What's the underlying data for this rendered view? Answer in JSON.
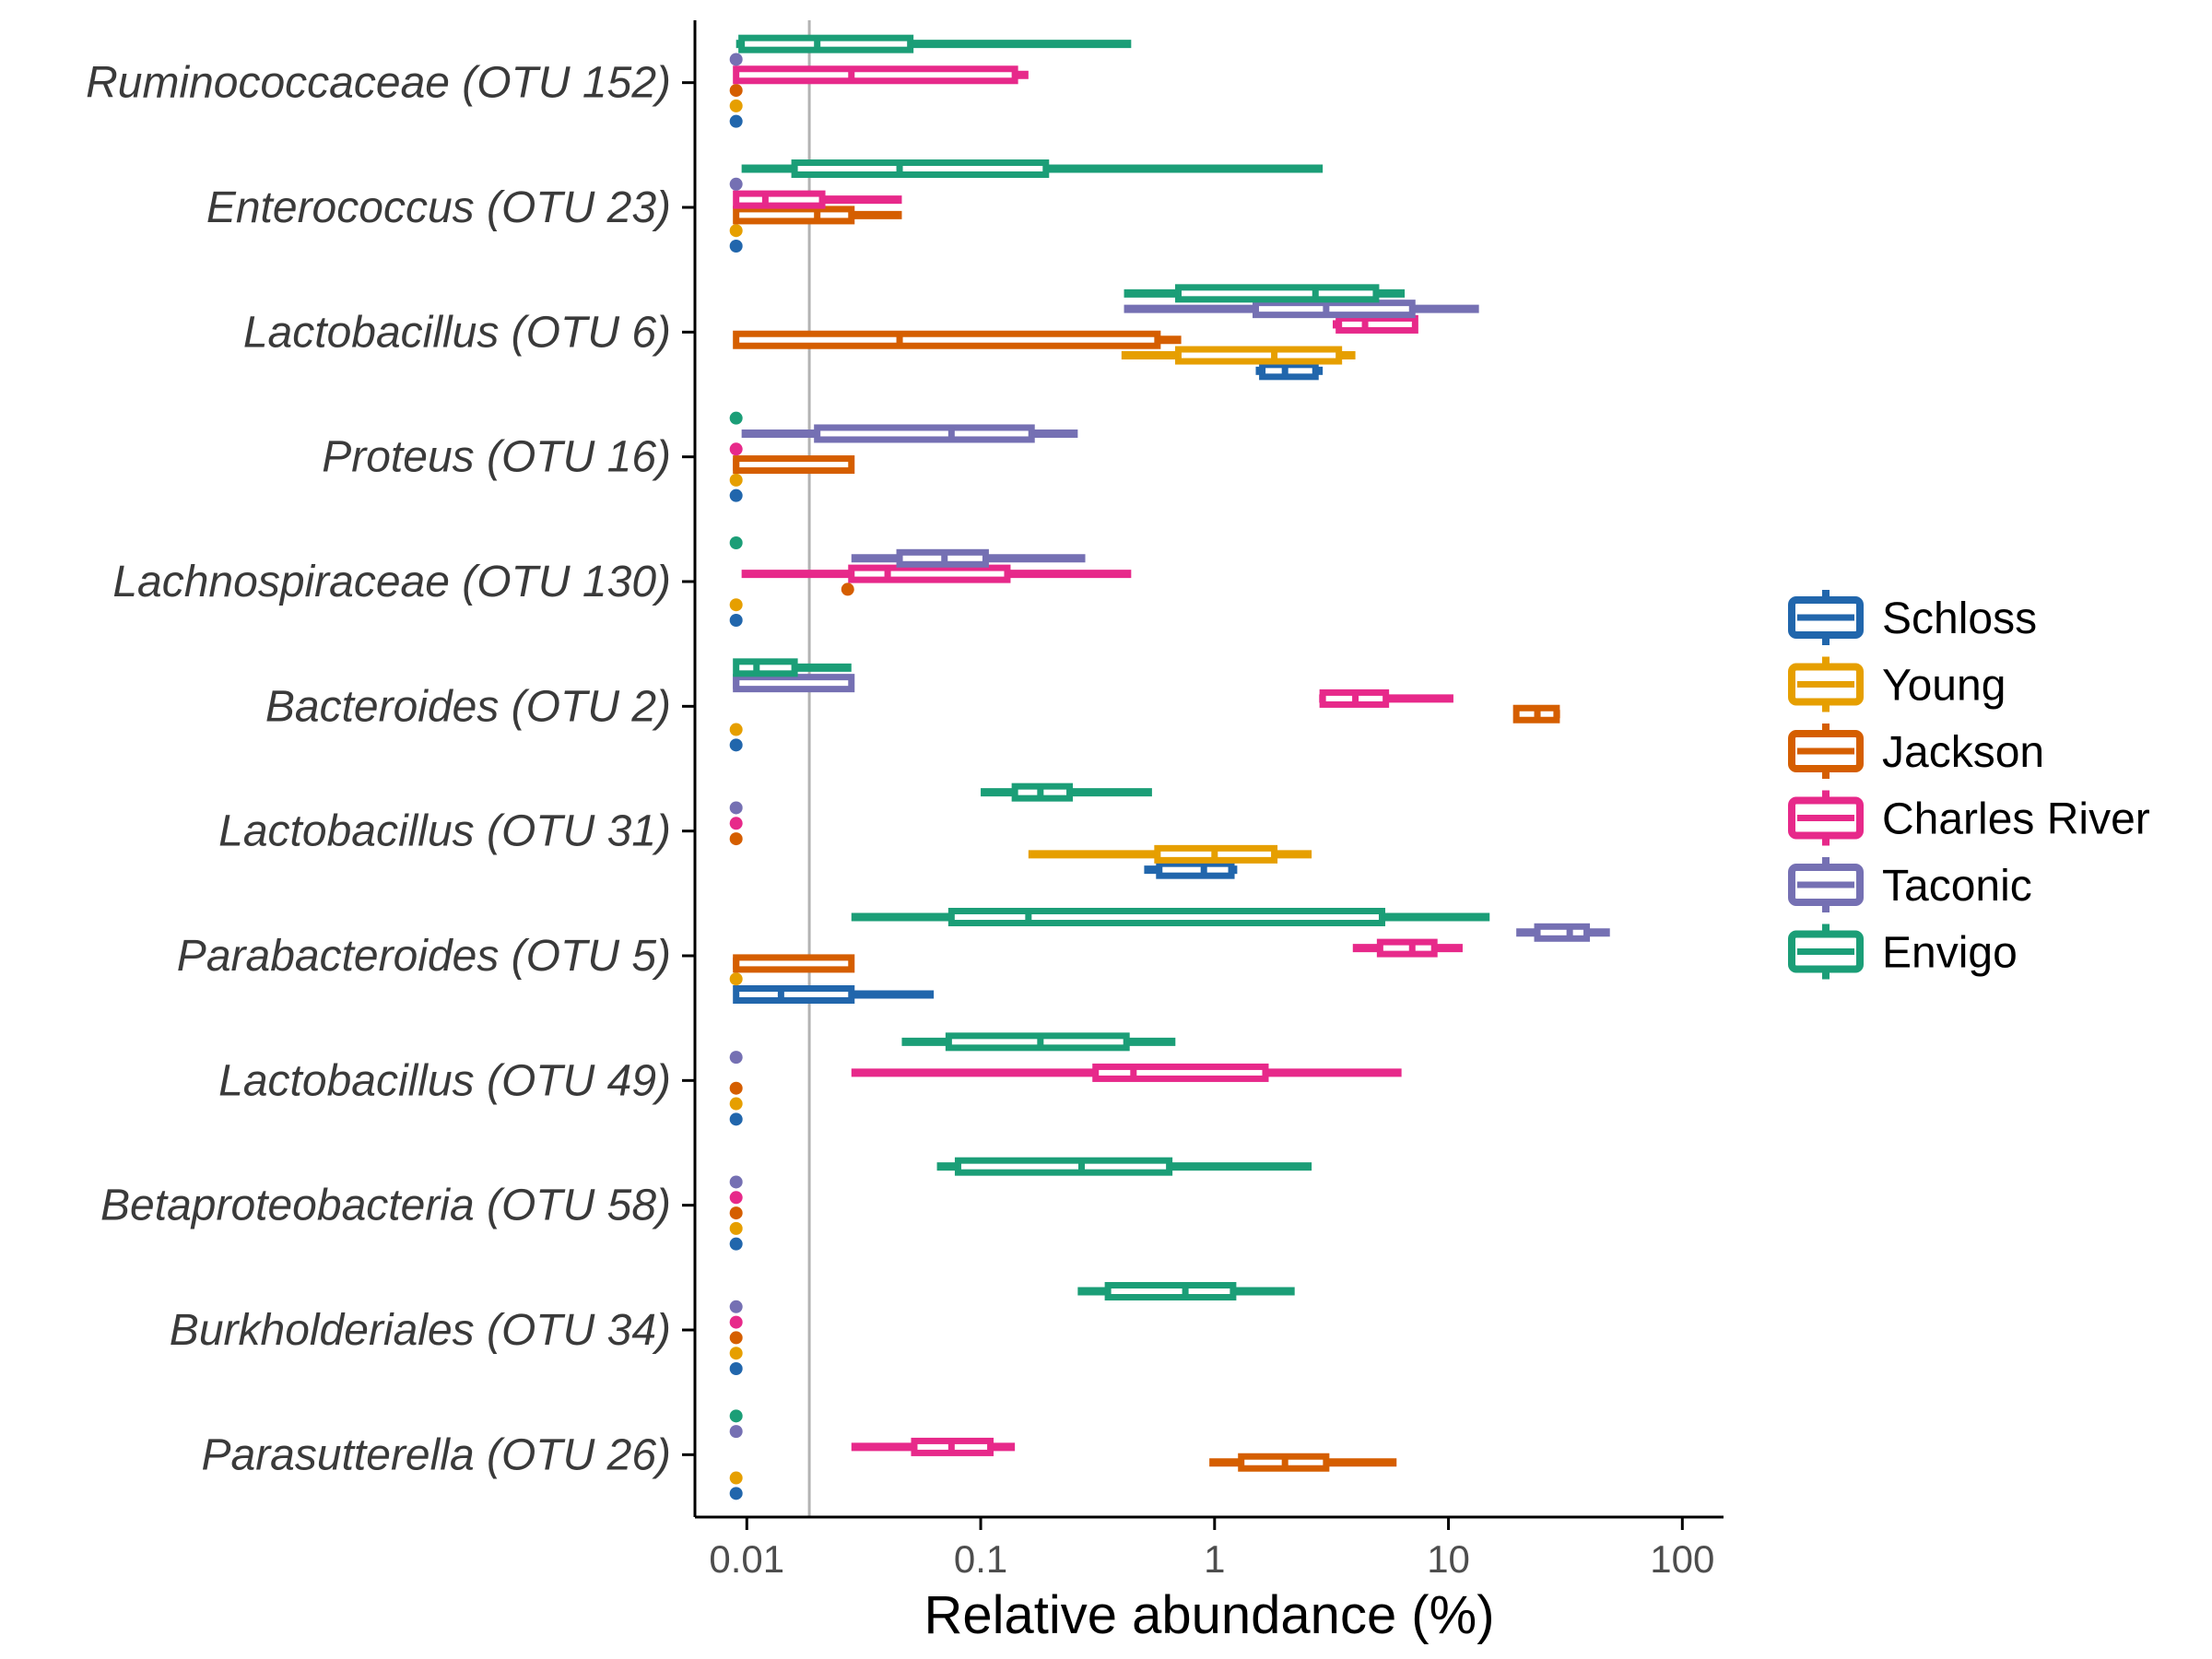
{
  "chart_data": {
    "type": "box",
    "orientation": "horizontal",
    "xlabel": "Relative abundance (%)",
    "x_scale": "log10",
    "xlim": [
      0.006,
      150
    ],
    "x_ticks": [
      {
        "value": 0.01,
        "label": "0.01"
      },
      {
        "value": 0.1,
        "label": "0.1"
      },
      {
        "value": 1,
        "label": "1"
      },
      {
        "value": 10,
        "label": "10"
      },
      {
        "value": 100,
        "label": "100"
      }
    ],
    "reference_line": 0.0185,
    "grid": false,
    "legend_position": "right",
    "series": [
      {
        "name": "Schloss",
        "color": "#2166AC"
      },
      {
        "name": "Young",
        "color": "#E69F00"
      },
      {
        "name": "Jackson",
        "color": "#D55E00"
      },
      {
        "name": "Charles River",
        "color": "#E7298A"
      },
      {
        "name": "Taconic",
        "color": "#7570B3"
      },
      {
        "name": "Envigo",
        "color": "#1B9E77"
      }
    ],
    "categories": [
      "Ruminococcaceae (OTU 152)",
      "Enterococcus (OTU 23)",
      "Lactobacillus (OTU 6)",
      "Proteus (OTU 16)",
      "Lachnospiraceae (OTU 130)",
      "Bacteroides (OTU 2)",
      "Lactobacillus (OTU 31)",
      "Parabacteroides (OTU 5)",
      "Lactobacillus (OTU 49)",
      "Betaproteobacteria (OTU 58)",
      "Burkholderiales (OTU 34)",
      "Parasutterella (OTU 26)"
    ],
    "boxes": [
      [
        {
          "series": "Schloss",
          "min": 0.009,
          "q1": 0.009,
          "median": 0.009,
          "q3": 0.009,
          "max": 0.009
        },
        {
          "series": "Young",
          "min": 0.009,
          "q1": 0.009,
          "median": 0.009,
          "q3": 0.009,
          "max": 0.009
        },
        {
          "series": "Jackson",
          "min": 0.009,
          "q1": 0.009,
          "median": 0.009,
          "q3": 0.009,
          "max": 0.009
        },
        {
          "series": "Charles River",
          "min": 0.009,
          "q1": 0.009,
          "median": 0.028,
          "q3": 0.14,
          "max": 0.16
        },
        {
          "series": "Taconic",
          "min": 0.009,
          "q1": 0.009,
          "median": 0.009,
          "q3": 0.009,
          "max": 0.009
        },
        {
          "series": "Envigo",
          "min": 0.009,
          "q1": 0.0095,
          "median": 0.02,
          "q3": 0.05,
          "max": 0.44
        }
      ],
      [
        {
          "series": "Schloss",
          "min": 0.009,
          "q1": 0.009,
          "median": 0.009,
          "q3": 0.009,
          "max": 0.009
        },
        {
          "series": "Young",
          "min": 0.009,
          "q1": 0.009,
          "median": 0.009,
          "q3": 0.009,
          "max": 0.009
        },
        {
          "series": "Jackson",
          "min": 0.009,
          "q1": 0.009,
          "median": 0.02,
          "q3": 0.028,
          "max": 0.046
        },
        {
          "series": "Charles River",
          "min": 0.009,
          "q1": 0.009,
          "median": 0.012,
          "q3": 0.021,
          "max": 0.046
        },
        {
          "series": "Taconic",
          "min": 0.009,
          "q1": 0.009,
          "median": 0.009,
          "q3": 0.009,
          "max": 0.009
        },
        {
          "series": "Envigo",
          "min": 0.0095,
          "q1": 0.016,
          "median": 0.045,
          "q3": 0.19,
          "max": 2.9
        }
      ],
      [
        {
          "series": "Schloss",
          "min": 1.5,
          "q1": 1.6,
          "median": 2.0,
          "q3": 2.7,
          "max": 2.9
        },
        {
          "series": "Young",
          "min": 0.4,
          "q1": 0.7,
          "median": 1.8,
          "q3": 3.4,
          "max": 4.0
        },
        {
          "series": "Jackson",
          "min": 0.009,
          "q1": 0.009,
          "median": 0.045,
          "q3": 0.57,
          "max": 0.72
        },
        {
          "series": "Charles River",
          "min": 3.2,
          "q1": 3.4,
          "median": 4.4,
          "q3": 7.2,
          "max": 7.4
        },
        {
          "series": "Taconic",
          "min": 0.41,
          "q1": 1.5,
          "median": 3.0,
          "q3": 7.0,
          "max": 13.5
        },
        {
          "series": "Envigo",
          "min": 0.41,
          "q1": 0.7,
          "median": 2.7,
          "q3": 4.9,
          "max": 6.5
        }
      ],
      [
        {
          "series": "Schloss",
          "min": 0.009,
          "q1": 0.009,
          "median": 0.009,
          "q3": 0.009,
          "max": 0.009
        },
        {
          "series": "Young",
          "min": 0.009,
          "q1": 0.009,
          "median": 0.009,
          "q3": 0.009,
          "max": 0.009
        },
        {
          "series": "Jackson",
          "min": 0.009,
          "q1": 0.009,
          "median": 0.009,
          "q3": 0.028,
          "max": 0.028
        },
        {
          "series": "Charles River",
          "min": 0.009,
          "q1": 0.009,
          "median": 0.009,
          "q3": 0.009,
          "max": 0.009
        },
        {
          "series": "Taconic",
          "min": 0.0095,
          "q1": 0.02,
          "median": 0.075,
          "q3": 0.165,
          "max": 0.26
        },
        {
          "series": "Envigo",
          "min": 0.009,
          "q1": 0.009,
          "median": 0.009,
          "q3": 0.009,
          "max": 0.009
        }
      ],
      [
        {
          "series": "Schloss",
          "min": 0.009,
          "q1": 0.009,
          "median": 0.009,
          "q3": 0.009,
          "max": 0.009
        },
        {
          "series": "Young",
          "min": 0.009,
          "q1": 0.009,
          "median": 0.009,
          "q3": 0.009,
          "max": 0.009
        },
        {
          "series": "Jackson",
          "min": 0.027,
          "q1": 0.027,
          "median": 0.027,
          "q3": 0.027,
          "max": 0.027
        },
        {
          "series": "Charles River",
          "min": 0.0095,
          "q1": 0.028,
          "median": 0.04,
          "q3": 0.13,
          "max": 0.44
        },
        {
          "series": "Taconic",
          "min": 0.028,
          "q1": 0.045,
          "median": 0.07,
          "q3": 0.105,
          "max": 0.28
        },
        {
          "series": "Envigo",
          "min": 0.009,
          "q1": 0.009,
          "median": 0.009,
          "q3": 0.009,
          "max": 0.009
        }
      ],
      [
        {
          "series": "Schloss",
          "min": 0.009,
          "q1": 0.009,
          "median": 0.009,
          "q3": 0.009,
          "max": 0.009
        },
        {
          "series": "Young",
          "min": 0.009,
          "q1": 0.009,
          "median": 0.009,
          "q3": 0.009,
          "max": 0.009
        },
        {
          "series": "Jackson",
          "min": 19,
          "q1": 19.5,
          "median": 24,
          "q3": 29,
          "max": 30
        },
        {
          "series": "Charles River",
          "min": 2.8,
          "q1": 2.9,
          "median": 4.0,
          "q3": 5.4,
          "max": 10.5
        },
        {
          "series": "Taconic",
          "min": 0.009,
          "q1": 0.009,
          "median": 0.009,
          "q3": 0.028,
          "max": 0.028
        },
        {
          "series": "Envigo",
          "min": 0.009,
          "q1": 0.009,
          "median": 0.011,
          "q3": 0.016,
          "max": 0.028
        }
      ],
      [
        {
          "series": "Schloss",
          "min": 0.5,
          "q1": 0.58,
          "median": 0.9,
          "q3": 1.18,
          "max": 1.25
        },
        {
          "series": "Young",
          "min": 0.16,
          "q1": 0.57,
          "median": 1.0,
          "q3": 1.8,
          "max": 2.6
        },
        {
          "series": "Jackson",
          "min": 0.009,
          "q1": 0.009,
          "median": 0.009,
          "q3": 0.009,
          "max": 0.009
        },
        {
          "series": "Charles River",
          "min": 0.009,
          "q1": 0.009,
          "median": 0.009,
          "q3": 0.009,
          "max": 0.009
        },
        {
          "series": "Taconic",
          "min": 0.009,
          "q1": 0.009,
          "median": 0.009,
          "q3": 0.009,
          "max": 0.009
        },
        {
          "series": "Envigo",
          "min": 0.1,
          "q1": 0.14,
          "median": 0.18,
          "q3": 0.24,
          "max": 0.54
        }
      ],
      [
        {
          "series": "Schloss",
          "min": 0.009,
          "q1": 0.009,
          "median": 0.014,
          "q3": 0.028,
          "max": 0.063
        },
        {
          "series": "Young",
          "min": 0.009,
          "q1": 0.009,
          "median": 0.009,
          "q3": 0.009,
          "max": 0.009
        },
        {
          "series": "Jackson",
          "min": 0.009,
          "q1": 0.009,
          "median": 0.009,
          "q3": 0.028,
          "max": 0.028
        },
        {
          "series": "Charles River",
          "min": 3.9,
          "q1": 5.1,
          "median": 7.0,
          "q3": 8.7,
          "max": 11.5
        },
        {
          "series": "Taconic",
          "min": 19.5,
          "q1": 24,
          "median": 33,
          "q3": 39,
          "max": 49
        },
        {
          "series": "Envigo",
          "min": 0.028,
          "q1": 0.075,
          "median": 0.16,
          "q3": 5.2,
          "max": 15
        }
      ],
      [
        {
          "series": "Schloss",
          "min": 0.009,
          "q1": 0.009,
          "median": 0.009,
          "q3": 0.009,
          "max": 0.009
        },
        {
          "series": "Young",
          "min": 0.009,
          "q1": 0.009,
          "median": 0.009,
          "q3": 0.009,
          "max": 0.009
        },
        {
          "series": "Jackson",
          "min": 0.009,
          "q1": 0.009,
          "median": 0.009,
          "q3": 0.009,
          "max": 0.009
        },
        {
          "series": "Charles River",
          "min": 0.028,
          "q1": 0.31,
          "median": 0.45,
          "q3": 1.65,
          "max": 6.3
        },
        {
          "series": "Taconic",
          "min": 0.009,
          "q1": 0.009,
          "median": 0.009,
          "q3": 0.009,
          "max": 0.009
        },
        {
          "series": "Envigo",
          "min": 0.046,
          "q1": 0.073,
          "median": 0.18,
          "q3": 0.42,
          "max": 0.68
        }
      ],
      [
        {
          "series": "Schloss",
          "min": 0.009,
          "q1": 0.009,
          "median": 0.009,
          "q3": 0.009,
          "max": 0.009
        },
        {
          "series": "Young",
          "min": 0.009,
          "q1": 0.009,
          "median": 0.009,
          "q3": 0.009,
          "max": 0.009
        },
        {
          "series": "Jackson",
          "min": 0.009,
          "q1": 0.009,
          "median": 0.009,
          "q3": 0.009,
          "max": 0.009
        },
        {
          "series": "Charles River",
          "min": 0.009,
          "q1": 0.009,
          "median": 0.009,
          "q3": 0.009,
          "max": 0.009
        },
        {
          "series": "Taconic",
          "min": 0.009,
          "q1": 0.009,
          "median": 0.009,
          "q3": 0.009,
          "max": 0.009
        },
        {
          "series": "Envigo",
          "min": 0.065,
          "q1": 0.08,
          "median": 0.27,
          "q3": 0.64,
          "max": 2.6
        }
      ],
      [
        {
          "series": "Schloss",
          "min": 0.009,
          "q1": 0.009,
          "median": 0.009,
          "q3": 0.009,
          "max": 0.009
        },
        {
          "series": "Young",
          "min": 0.009,
          "q1": 0.009,
          "median": 0.009,
          "q3": 0.009,
          "max": 0.009
        },
        {
          "series": "Jackson",
          "min": 0.009,
          "q1": 0.009,
          "median": 0.009,
          "q3": 0.009,
          "max": 0.009
        },
        {
          "series": "Charles River",
          "min": 0.009,
          "q1": 0.009,
          "median": 0.009,
          "q3": 0.009,
          "max": 0.009
        },
        {
          "series": "Taconic",
          "min": 0.009,
          "q1": 0.009,
          "median": 0.009,
          "q3": 0.009,
          "max": 0.009
        },
        {
          "series": "Envigo",
          "min": 0.26,
          "q1": 0.35,
          "median": 0.75,
          "q3": 1.2,
          "max": 2.2
        }
      ],
      [
        {
          "series": "Schloss",
          "min": 0.009,
          "q1": 0.009,
          "median": 0.009,
          "q3": 0.009,
          "max": 0.009
        },
        {
          "series": "Young",
          "min": 0.009,
          "q1": 0.009,
          "median": 0.009,
          "q3": 0.009,
          "max": 0.009
        },
        {
          "series": "Jackson",
          "min": 0.95,
          "q1": 1.3,
          "median": 2.0,
          "q3": 3.0,
          "max": 6.0
        },
        {
          "series": "Charles River",
          "min": 0.028,
          "q1": 0.052,
          "median": 0.075,
          "q3": 0.11,
          "max": 0.14
        },
        {
          "series": "Taconic",
          "min": 0.009,
          "q1": 0.009,
          "median": 0.009,
          "q3": 0.009,
          "max": 0.009
        },
        {
          "series": "Envigo",
          "min": 0.009,
          "q1": 0.009,
          "median": 0.009,
          "q3": 0.009,
          "max": 0.009
        }
      ]
    ]
  }
}
